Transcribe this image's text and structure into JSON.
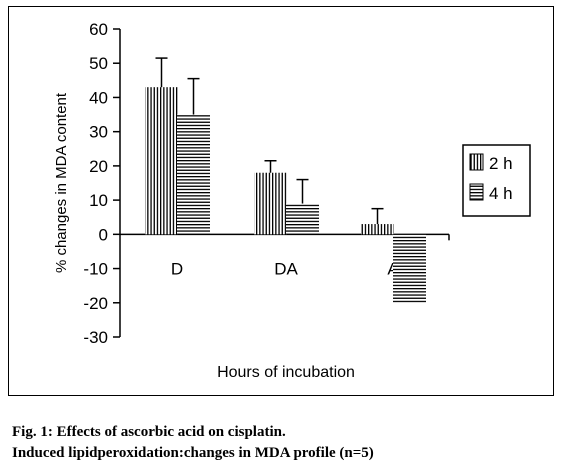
{
  "chart_data": {
    "type": "bar",
    "xlabel": "Hours of incubation",
    "ylabel": "% changes in MDA content",
    "ylim": [
      -30,
      60
    ],
    "yticks": [
      60,
      50,
      40,
      30,
      20,
      10,
      0,
      -10,
      -20,
      -30
    ],
    "categories": [
      "D",
      "DA",
      "A"
    ],
    "series": [
      {
        "name": "2 h",
        "values": [
          43,
          18,
          3
        ],
        "errors": [
          8.5,
          3.5,
          4.5
        ],
        "pattern": "vertical-stripes"
      },
      {
        "name": "4 h",
        "values": [
          35,
          9,
          -20
        ],
        "errors": [
          10.5,
          7,
          0
        ],
        "pattern": "horizontal-stripes"
      }
    ],
    "legend_position": "right",
    "grid": false
  },
  "caption": {
    "line1": "Fig. 1: Effects of ascorbic acid on cisplatin.",
    "line2": "Induced lipidperoxidation:changes in MDA profile (n=5)"
  }
}
